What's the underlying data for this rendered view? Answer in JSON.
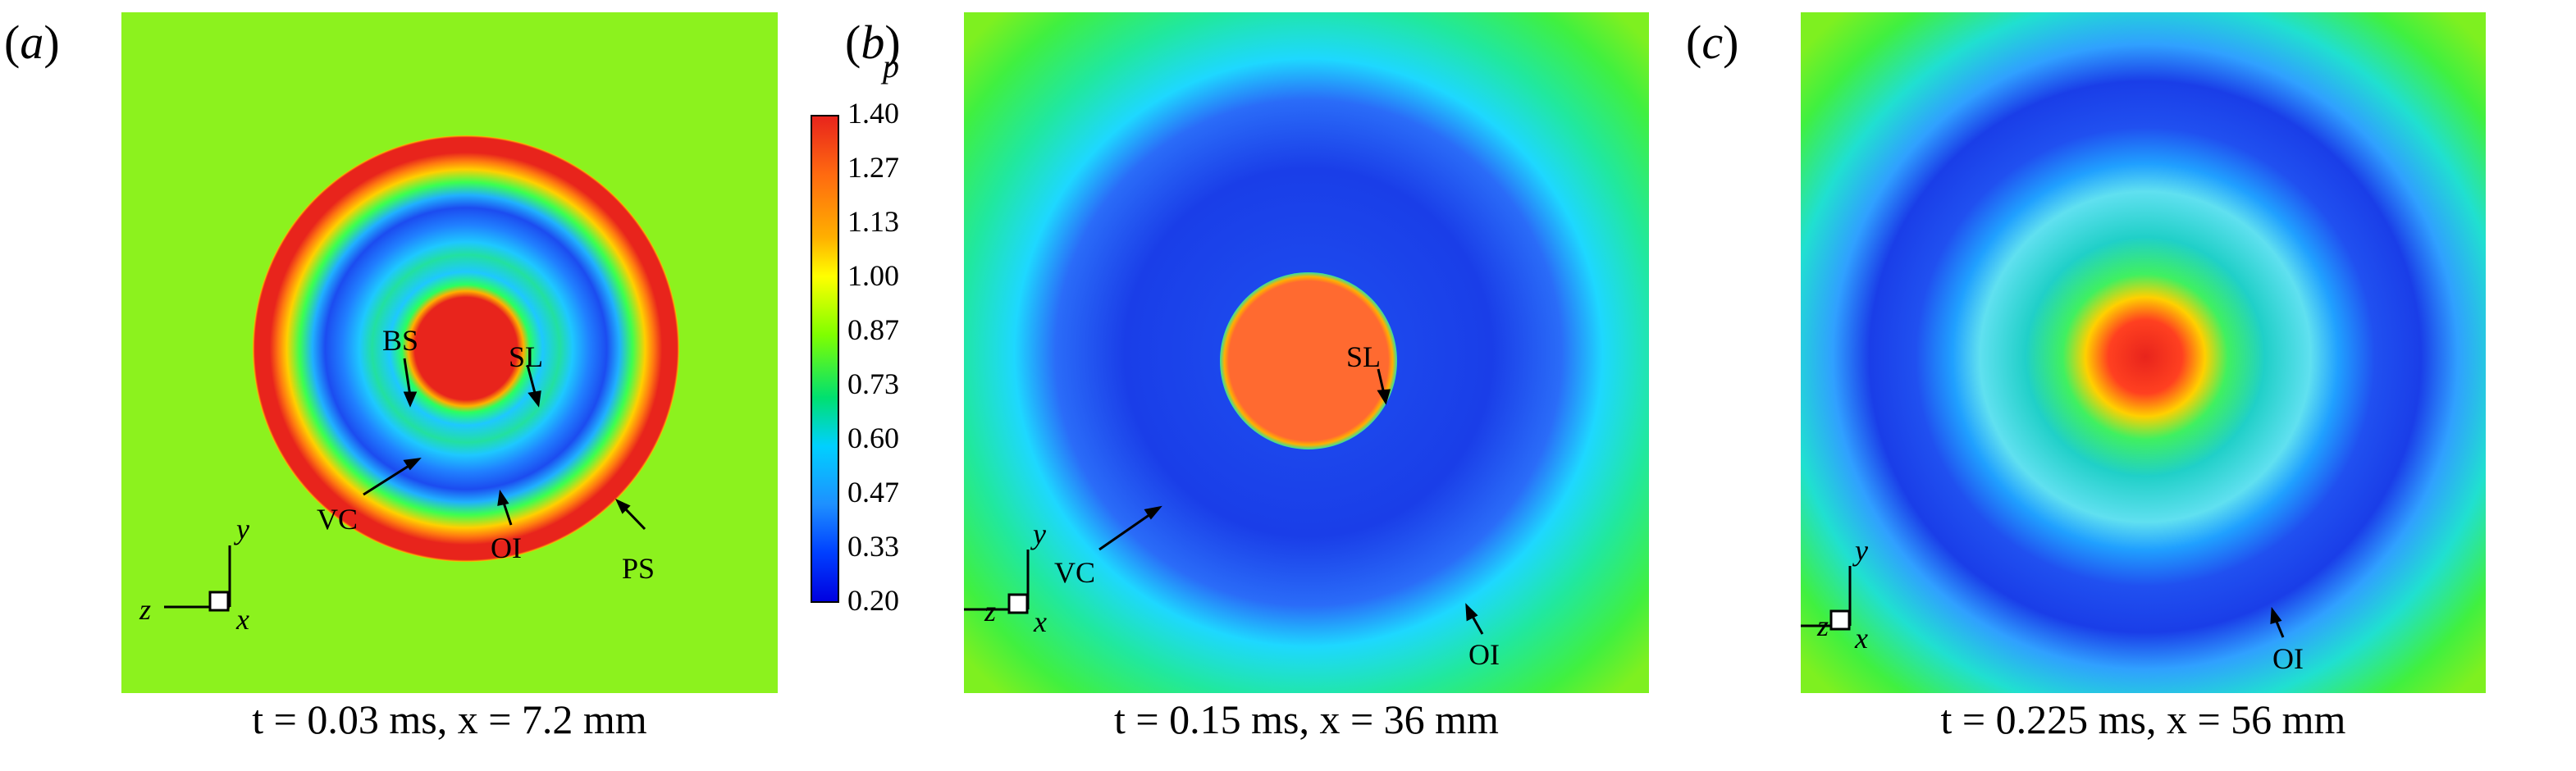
{
  "panels": [
    {
      "label_open": "(",
      "label_letter": "a",
      "label_close": ")",
      "caption": "t = 0.03 ms, x = 7.2 mm",
      "annotations": [
        "BS",
        "SL",
        "VC",
        "OI",
        "PS"
      ],
      "axes": {
        "y": "y",
        "z": "z",
        "x": "x"
      }
    },
    {
      "label_open": "(",
      "label_letter": "b",
      "label_close": ")",
      "caption": "t = 0.15 ms, x = 36 mm",
      "annotations": [
        "SL",
        "VC",
        "OI"
      ],
      "axes": {
        "y": "y",
        "z": "z",
        "x": "x"
      }
    },
    {
      "label_open": "(",
      "label_letter": "c",
      "label_close": ")",
      "caption": "t = 0.225 ms, x = 56 mm",
      "annotations": [
        "OI"
      ],
      "axes": {
        "y": "y",
        "z": "z",
        "x": "x"
      }
    }
  ],
  "colorbar": {
    "title": "p",
    "ticks": [
      "1.40",
      "1.27",
      "1.13",
      "1.00",
      "0.87",
      "0.73",
      "0.60",
      "0.47",
      "0.33",
      "0.20"
    ],
    "colors": {
      "high": "#e8241c",
      "mid_high": "#ffd200",
      "mid": "#80ff00",
      "mid_low": "#00c8a0",
      "low_mid": "#1e90ff",
      "low": "#0000e0"
    }
  }
}
